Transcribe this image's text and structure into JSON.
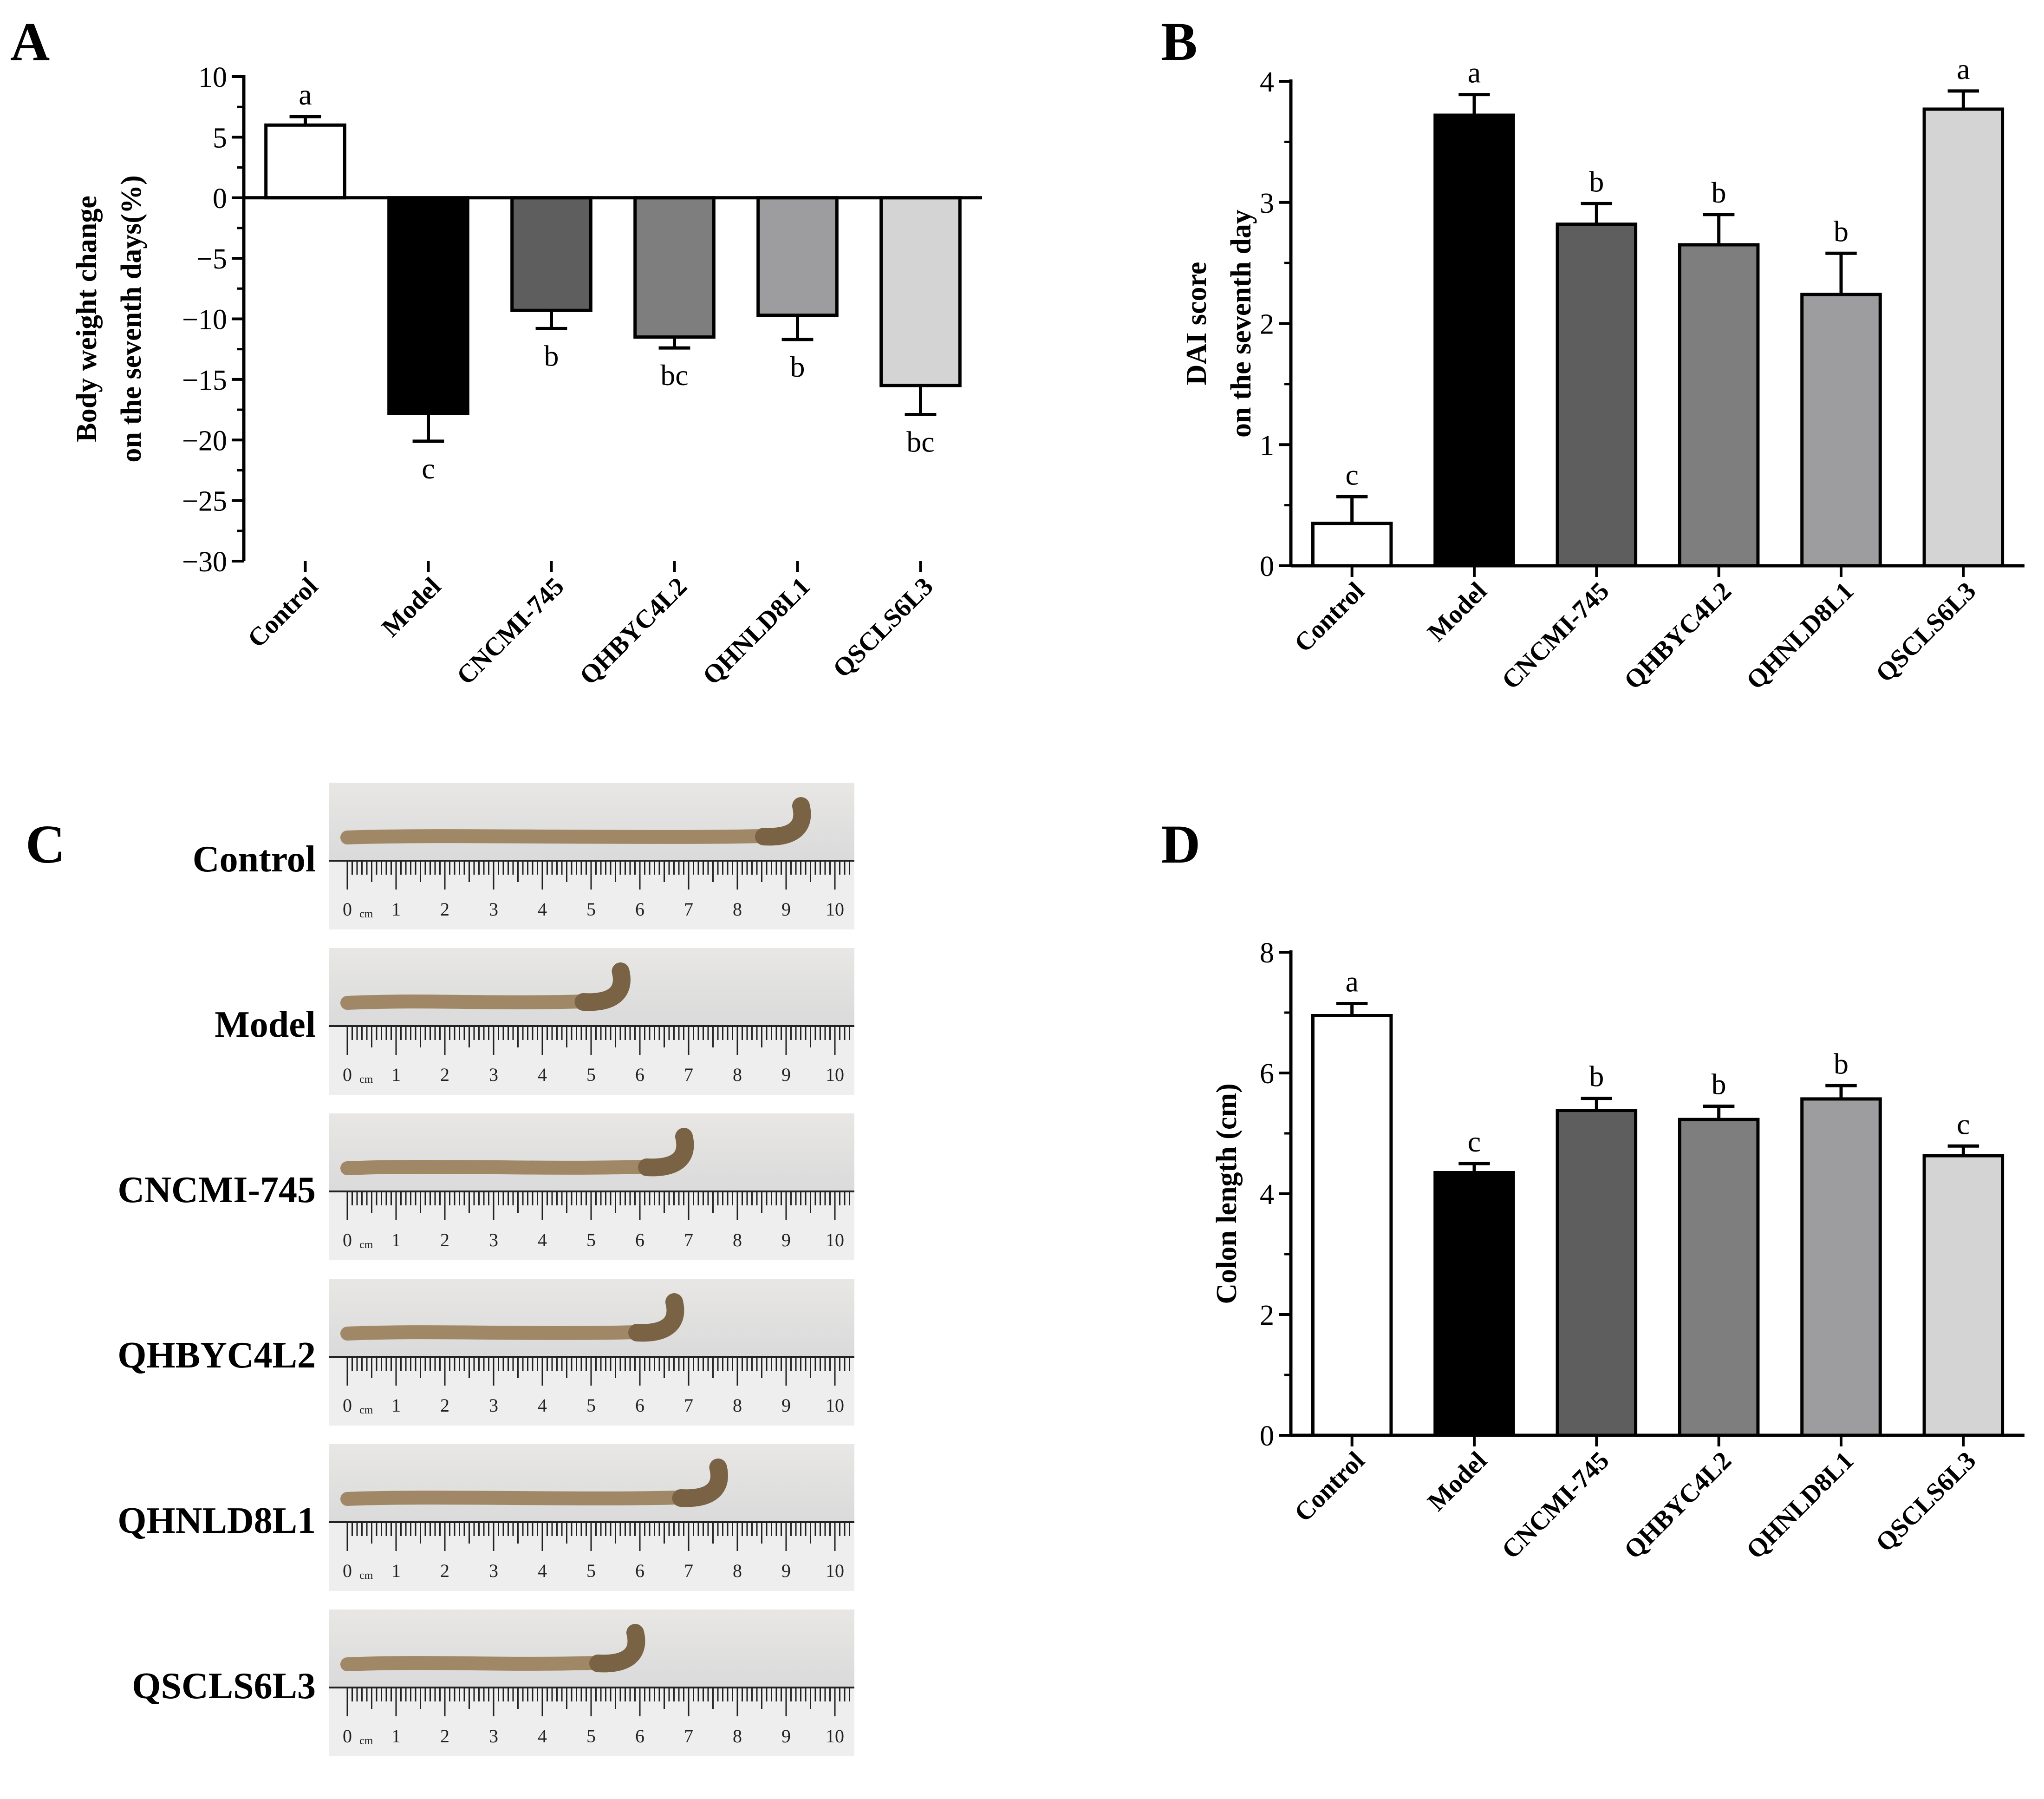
{
  "chart_data": [
    {
      "panel": "A",
      "type": "bar",
      "ylabel_line1": "Body weight change",
      "ylabel_line2": "on the seventh days(%)",
      "categories": [
        "Control",
        "Model",
        "CNCMI-745",
        "QHBYC4L2",
        "QHNLD8L1",
        "QSCLS6L3"
      ],
      "values": [
        6.0,
        -17.8,
        -9.3,
        -11.5,
        -9.7,
        -15.5
      ],
      "errors": [
        0.7,
        2.3,
        1.5,
        0.9,
        2.0,
        2.4
      ],
      "letters": [
        "a",
        "c",
        "b",
        "bc",
        "b",
        "bc"
      ],
      "colors": [
        "#ffffff",
        "#000000",
        "#5e5e5e",
        "#7e7e7e",
        "#9d9da0",
        "#d4d4d4"
      ],
      "ylim": [
        -30,
        10
      ],
      "yticks": [
        "-30",
        "-25",
        "-20",
        "-15",
        "-10",
        "-5",
        "0",
        "5",
        "10"
      ]
    },
    {
      "panel": "B",
      "type": "bar",
      "ylabel_line1": "DAI score",
      "ylabel_line2": "on the seventh day",
      "categories": [
        "Control",
        "Model",
        "CNCMI-745",
        "QHBYC4L2",
        "QHNLD8L1",
        "QSCLS6L3"
      ],
      "values": [
        0.35,
        3.72,
        2.82,
        2.65,
        2.24,
        3.77
      ],
      "errors": [
        0.22,
        0.17,
        0.17,
        0.25,
        0.34,
        0.15
      ],
      "letters": [
        "c",
        "a",
        "b",
        "b",
        "b",
        "a"
      ],
      "colors": [
        "#ffffff",
        "#000000",
        "#5e5e5e",
        "#7e7e7e",
        "#9d9da0",
        "#d4d4d4"
      ],
      "ylim": [
        0,
        4
      ],
      "yticks": [
        "0",
        "1",
        "2",
        "3",
        "4"
      ]
    },
    {
      "panel": "D",
      "type": "bar",
      "ylabel_line1": "Colon length (cm)",
      "ylabel_line2": "",
      "categories": [
        "Control",
        "Model",
        "CNCMI-745",
        "QHBYC4L2",
        "QHNLD8L1",
        "QSCLS6L3"
      ],
      "values": [
        6.95,
        4.35,
        5.38,
        5.23,
        5.57,
        4.63
      ],
      "errors": [
        0.2,
        0.15,
        0.2,
        0.22,
        0.22,
        0.16
      ],
      "letters": [
        "a",
        "c",
        "b",
        "b",
        "b",
        "c"
      ],
      "colors": [
        "#ffffff",
        "#000000",
        "#5e5e5e",
        "#7e7e7e",
        "#9d9da0",
        "#d4d4d4"
      ],
      "ylim": [
        0,
        8
      ],
      "yticks": [
        "0",
        "2",
        "4",
        "6",
        "8"
      ]
    }
  ],
  "panel_letters": {
    "a": "A",
    "b": "B",
    "c": "C",
    "d": "D"
  },
  "photos": {
    "rows": [
      {
        "label": "Control",
        "colon_end_cm": 9.4
      },
      {
        "label": "Model",
        "colon_end_cm": 5.7
      },
      {
        "label": "CNCMI-745",
        "colon_end_cm": 7.0
      },
      {
        "label": "QHBYC4L2",
        "colon_end_cm": 6.8
      },
      {
        "label": "QHNLD8L1",
        "colon_end_cm": 7.7
      },
      {
        "label": "QSCLS6L3",
        "colon_end_cm": 6.0
      }
    ],
    "ruler_numbers": [
      "0",
      "1",
      "2",
      "3",
      "4",
      "5",
      "6",
      "7",
      "8",
      "9",
      "10"
    ],
    "ruler_unit": "cm"
  }
}
